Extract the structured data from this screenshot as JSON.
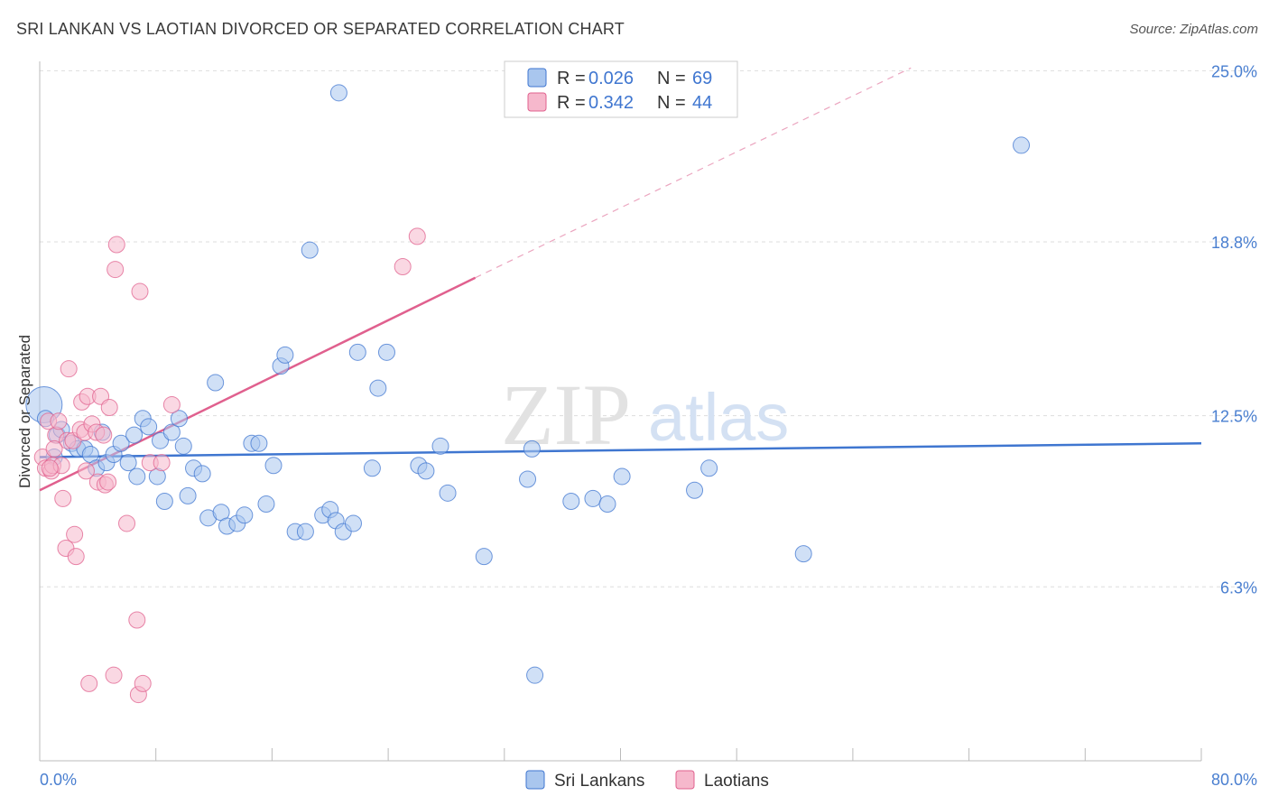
{
  "title": "SRI LANKAN VS LAOTIAN DIVORCED OR SEPARATED CORRELATION CHART",
  "source": "Source: ZipAtlas.com",
  "watermark": {
    "zip": "ZIP",
    "atlas": "atlas"
  },
  "colors": {
    "blue": "#3f76d0",
    "blue_fill": "#a9c6ee",
    "pink": "#e0608e",
    "pink_fill": "#f6b8cc",
    "grid": "#dddddd"
  },
  "legend": {
    "rows": [
      {
        "r_label": "R =",
        "r_value": "0.026",
        "n_label": "N =",
        "n_value": "69"
      },
      {
        "r_label": "R =",
        "r_value": "0.342",
        "n_label": "N =",
        "n_value": "44"
      }
    ]
  },
  "bottom_legend": {
    "series1": "Sri Lankans",
    "series2": "Laotians"
  },
  "chart_data": {
    "type": "scatter",
    "xlabel": "",
    "ylabel": "Divorced or Separated",
    "xlim": [
      0,
      80
    ],
    "ylim": [
      0,
      25.6
    ],
    "x_tick_labels": {
      "left": "0.0%",
      "right": "80.0%"
    },
    "y_ticks": [
      6.3,
      12.5,
      18.8,
      25.0
    ],
    "y_tick_labels": [
      "6.3%",
      "12.5%",
      "18.8%",
      "25.0%"
    ],
    "grid": true,
    "legend_position": "top-center",
    "series": [
      {
        "name": "Sri Lankans",
        "color": "#3f76d0",
        "trend": {
          "x": [
            0,
            80
          ],
          "y": [
            11.0,
            11.5
          ]
        },
        "points": [
          [
            0.3,
            12.9
          ],
          [
            0.4,
            12.4
          ],
          [
            1.2,
            11.8
          ],
          [
            1.5,
            12.0
          ],
          [
            2.2,
            11.5
          ],
          [
            2.6,
            11.3
          ],
          [
            3.1,
            11.3
          ],
          [
            3.5,
            11.1
          ],
          [
            3.9,
            10.6
          ],
          [
            4.3,
            11.9
          ],
          [
            4.6,
            10.8
          ],
          [
            5.1,
            11.1
          ],
          [
            5.6,
            11.5
          ],
          [
            6.1,
            10.8
          ],
          [
            6.5,
            11.8
          ],
          [
            6.7,
            10.3
          ],
          [
            7.1,
            12.4
          ],
          [
            7.5,
            12.1
          ],
          [
            8.1,
            10.3
          ],
          [
            8.3,
            11.6
          ],
          [
            8.6,
            9.4
          ],
          [
            9.1,
            11.9
          ],
          [
            9.6,
            12.4
          ],
          [
            9.9,
            11.4
          ],
          [
            10.2,
            9.6
          ],
          [
            10.6,
            10.6
          ],
          [
            11.2,
            10.4
          ],
          [
            11.6,
            8.8
          ],
          [
            12.1,
            13.7
          ],
          [
            12.5,
            9.0
          ],
          [
            12.9,
            8.5
          ],
          [
            13.6,
            8.6
          ],
          [
            14.1,
            8.9
          ],
          [
            14.6,
            11.5
          ],
          [
            15.1,
            11.5
          ],
          [
            15.6,
            9.3
          ],
          [
            16.1,
            10.7
          ],
          [
            16.6,
            14.3
          ],
          [
            16.9,
            14.7
          ],
          [
            17.6,
            8.3
          ],
          [
            18.3,
            8.3
          ],
          [
            18.6,
            18.5
          ],
          [
            19.5,
            8.9
          ],
          [
            20.0,
            9.1
          ],
          [
            20.4,
            8.7
          ],
          [
            20.6,
            24.2
          ],
          [
            20.9,
            8.3
          ],
          [
            21.6,
            8.6
          ],
          [
            21.9,
            14.8
          ],
          [
            22.9,
            10.6
          ],
          [
            23.3,
            13.5
          ],
          [
            23.9,
            14.8
          ],
          [
            26.1,
            10.7
          ],
          [
            26.6,
            10.5
          ],
          [
            27.6,
            11.4
          ],
          [
            28.1,
            9.7
          ],
          [
            30.6,
            7.4
          ],
          [
            33.6,
            10.2
          ],
          [
            33.9,
            11.3
          ],
          [
            34.1,
            3.1
          ],
          [
            36.6,
            9.4
          ],
          [
            38.1,
            9.5
          ],
          [
            39.1,
            9.3
          ],
          [
            40.1,
            10.3
          ],
          [
            45.1,
            9.8
          ],
          [
            46.1,
            10.6
          ],
          [
            52.6,
            7.5
          ],
          [
            67.6,
            22.3
          ],
          [
            1.0,
            11.0
          ]
        ]
      },
      {
        "name": "Laotians",
        "color": "#e0608e",
        "trend": {
          "x": [
            0,
            30
          ],
          "y": [
            9.8,
            17.5
          ]
        },
        "trend_extension": {
          "x": [
            30,
            60
          ],
          "y": [
            17.5,
            25.1
          ]
        },
        "points": [
          [
            0.2,
            11.0
          ],
          [
            0.4,
            10.6
          ],
          [
            0.6,
            12.3
          ],
          [
            0.8,
            10.5
          ],
          [
            0.9,
            10.7
          ],
          [
            1.1,
            11.8
          ],
          [
            1.3,
            12.3
          ],
          [
            1.5,
            10.7
          ],
          [
            1.6,
            9.5
          ],
          [
            1.8,
            7.7
          ],
          [
            1.9,
            11.6
          ],
          [
            2.0,
            14.2
          ],
          [
            2.3,
            11.6
          ],
          [
            2.4,
            8.2
          ],
          [
            2.5,
            7.4
          ],
          [
            2.8,
            12.0
          ],
          [
            2.9,
            13.0
          ],
          [
            3.1,
            11.9
          ],
          [
            3.2,
            10.5
          ],
          [
            3.3,
            13.2
          ],
          [
            3.4,
            2.8
          ],
          [
            3.6,
            12.2
          ],
          [
            3.9,
            11.9
          ],
          [
            4.0,
            10.1
          ],
          [
            4.2,
            13.2
          ],
          [
            4.4,
            11.8
          ],
          [
            4.5,
            10.0
          ],
          [
            4.7,
            10.1
          ],
          [
            4.8,
            12.8
          ],
          [
            5.1,
            3.1
          ],
          [
            5.2,
            17.8
          ],
          [
            5.3,
            18.7
          ],
          [
            6.0,
            8.6
          ],
          [
            6.7,
            5.1
          ],
          [
            6.8,
            2.4
          ],
          [
            6.9,
            17.0
          ],
          [
            7.1,
            2.8
          ],
          [
            7.6,
            10.8
          ],
          [
            8.4,
            10.8
          ],
          [
            9.1,
            12.9
          ],
          [
            25.0,
            17.9
          ],
          [
            26.0,
            19.0
          ],
          [
            1.0,
            11.3
          ],
          [
            0.7,
            10.6
          ]
        ]
      }
    ]
  }
}
